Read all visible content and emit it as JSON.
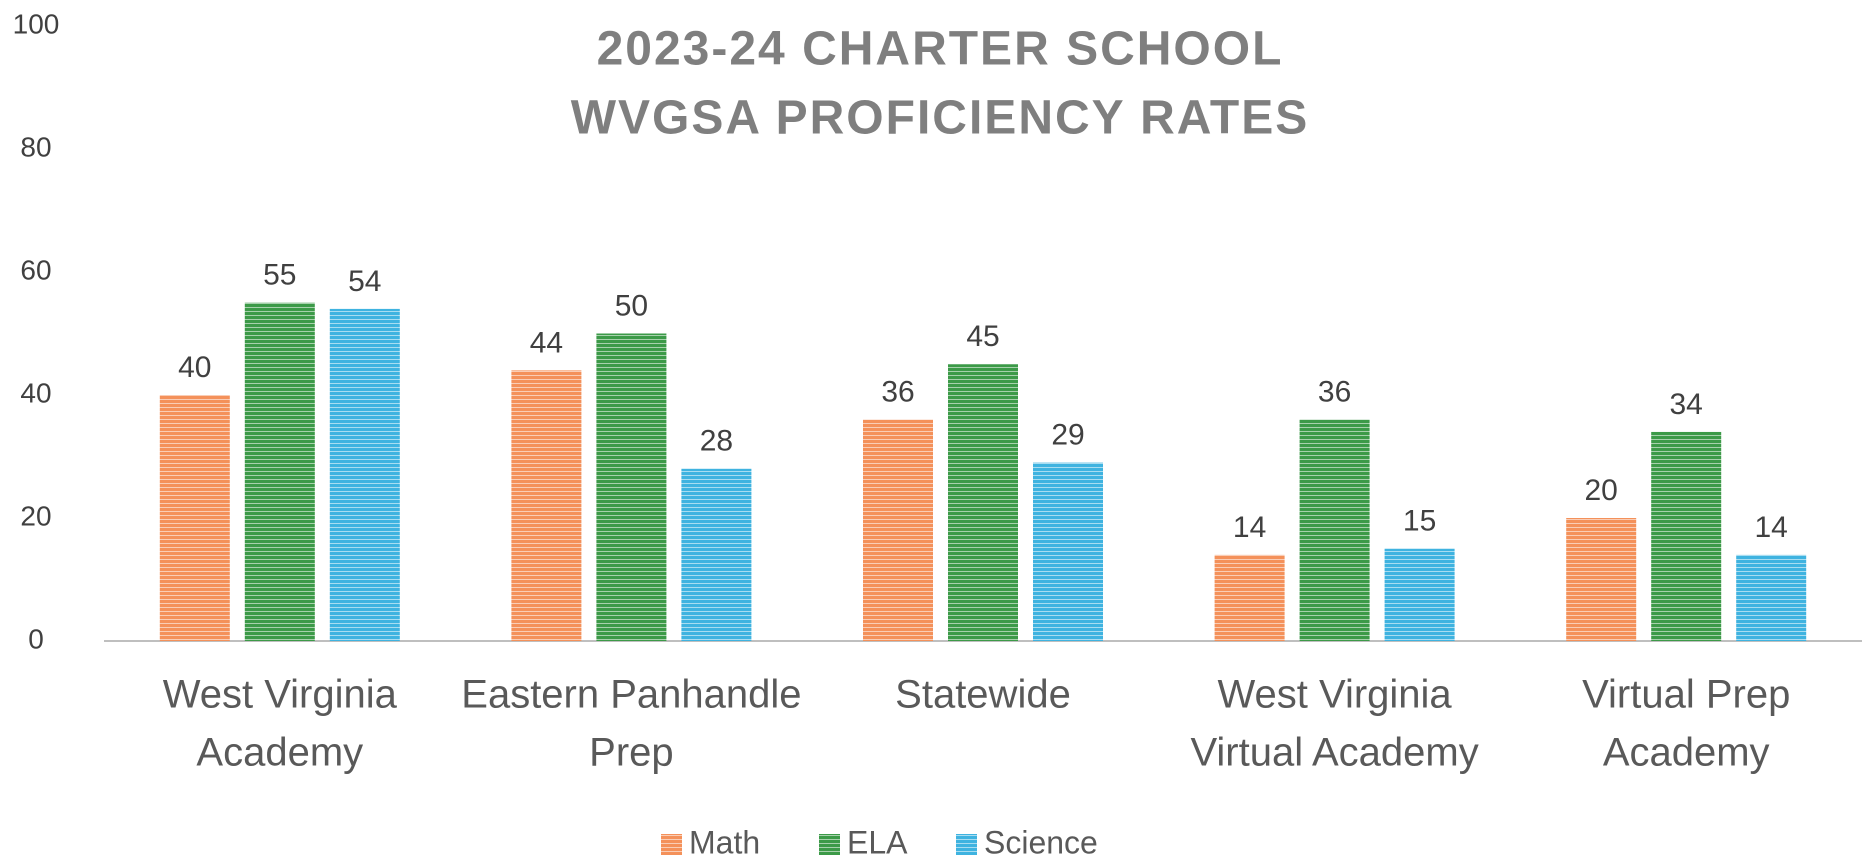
{
  "chart_data": {
    "type": "bar",
    "title": [
      "2023-24 CHARTER SCHOOL",
      "WVGSA PROFICIENCY RATES"
    ],
    "categories": [
      [
        "West Virginia",
        "Academy"
      ],
      [
        "Eastern Panhandle",
        "Prep"
      ],
      [
        "Statewide"
      ],
      [
        "West Virginia",
        "Virtual Academy"
      ],
      [
        "Virtual Prep",
        "Academy"
      ]
    ],
    "series": [
      {
        "name": "Math",
        "color": "#f4915a",
        "values": [
          40,
          44,
          36,
          14,
          20
        ]
      },
      {
        "name": "ELA",
        "color": "#3c9a48",
        "values": [
          55,
          50,
          45,
          36,
          34
        ]
      },
      {
        "name": "Science",
        "color": "#3fb3e0",
        "values": [
          54,
          28,
          29,
          15,
          14
        ]
      }
    ],
    "ylim": [
      0,
      100
    ],
    "yticks": [
      0,
      20,
      40,
      60,
      80,
      100
    ],
    "grid": false,
    "legend": "bottom"
  }
}
